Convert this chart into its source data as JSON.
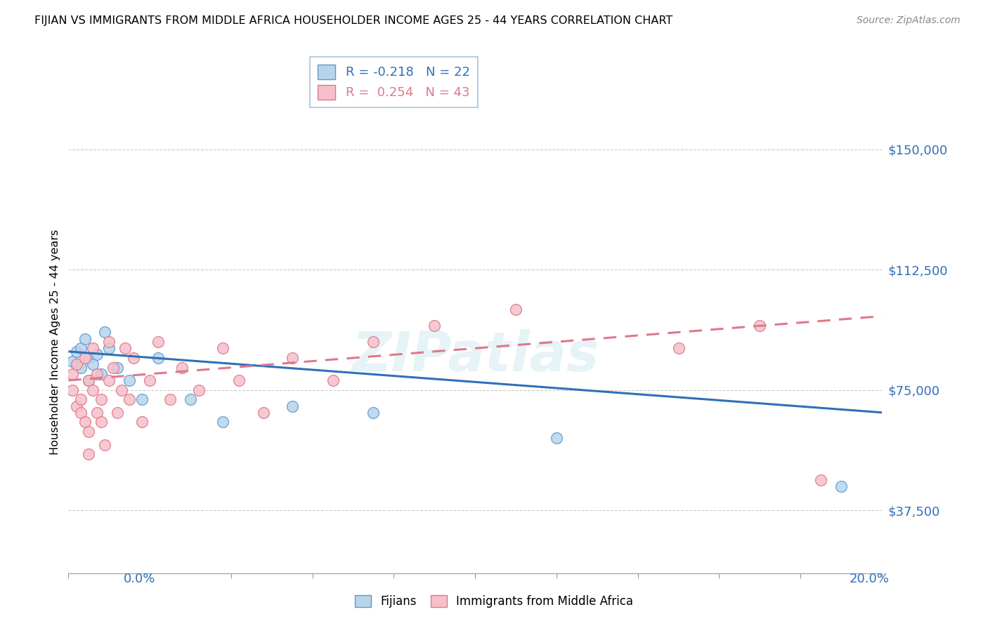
{
  "title": "FIJIAN VS IMMIGRANTS FROM MIDDLE AFRICA HOUSEHOLDER INCOME AGES 25 - 44 YEARS CORRELATION CHART",
  "source": "Source: ZipAtlas.com",
  "ylabel": "Householder Income Ages 25 - 44 years",
  "yticks": [
    37500,
    75000,
    112500,
    150000
  ],
  "ytick_labels": [
    "$37,500",
    "$75,000",
    "$112,500",
    "$150,000"
  ],
  "xmin": 0.0,
  "xmax": 0.2,
  "ymin": 18000,
  "ymax": 162000,
  "watermark": "ZIPatlas",
  "fijian_color": "#b8d4ea",
  "fijian_edge": "#5b9bd5",
  "immigrant_color": "#f5c0cb",
  "immigrant_edge": "#e07888",
  "fijian_R": -0.218,
  "fijian_N": 22,
  "immigrant_R": 0.254,
  "immigrant_N": 43,
  "fijian_line_color": "#3070b8",
  "immigrant_line_color": "#e07888",
  "fijians_x": [
    0.001,
    0.002,
    0.003,
    0.003,
    0.004,
    0.005,
    0.005,
    0.006,
    0.007,
    0.008,
    0.009,
    0.01,
    0.012,
    0.015,
    0.018,
    0.022,
    0.03,
    0.038,
    0.055,
    0.075,
    0.12,
    0.19
  ],
  "fijians_y": [
    84000,
    87000,
    82000,
    88000,
    91000,
    85000,
    78000,
    83000,
    86000,
    80000,
    93000,
    88000,
    82000,
    78000,
    72000,
    85000,
    72000,
    65000,
    70000,
    68000,
    60000,
    45000
  ],
  "immigrants_x": [
    0.001,
    0.001,
    0.002,
    0.002,
    0.003,
    0.003,
    0.004,
    0.004,
    0.005,
    0.005,
    0.005,
    0.006,
    0.006,
    0.007,
    0.007,
    0.008,
    0.008,
    0.009,
    0.01,
    0.01,
    0.011,
    0.012,
    0.013,
    0.014,
    0.015,
    0.016,
    0.018,
    0.02,
    0.022,
    0.025,
    0.028,
    0.032,
    0.038,
    0.042,
    0.048,
    0.055,
    0.065,
    0.075,
    0.09,
    0.11,
    0.15,
    0.17,
    0.185
  ],
  "immigrants_y": [
    80000,
    75000,
    70000,
    83000,
    72000,
    68000,
    65000,
    85000,
    78000,
    62000,
    55000,
    88000,
    75000,
    68000,
    80000,
    72000,
    65000,
    58000,
    90000,
    78000,
    82000,
    68000,
    75000,
    88000,
    72000,
    85000,
    65000,
    78000,
    90000,
    72000,
    82000,
    75000,
    88000,
    78000,
    68000,
    85000,
    78000,
    90000,
    95000,
    100000,
    88000,
    95000,
    47000
  ]
}
